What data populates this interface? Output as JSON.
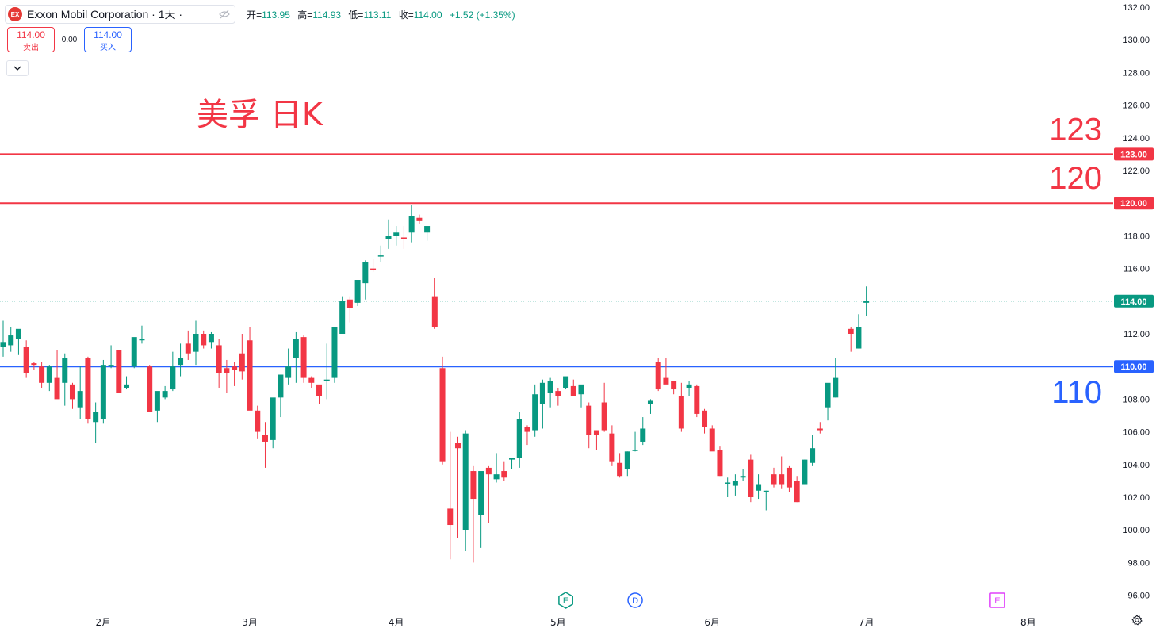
{
  "legend": {
    "symbol_logo": "EX",
    "symbol_name": "Exxon Mobil Corporation · 1天 ·",
    "eye_icon": "eye-off-icon",
    "open_label": "开=",
    "open_value": "113.95",
    "high_label": "高=",
    "high_value": "114.93",
    "low_label": "低=",
    "low_value": "113.11",
    "close_label": "收=",
    "close_value": "114.00",
    "change": "+1.52 (+1.35%)"
  },
  "trade": {
    "sell_price": "114.00",
    "sell_label": "卖出",
    "spread": "0.00",
    "buy_price": "114.00",
    "buy_label": "买入"
  },
  "collapse_icon": "chevron-down-icon",
  "settings_icon": "gear-icon",
  "colors": {
    "up": "#089981",
    "down": "#f23645",
    "red_line": "#f23645",
    "blue_line": "#2962ff"
  },
  "chart_data": {
    "type": "candlestick",
    "annotation": "美孚 日K",
    "y_ticks": [
      "132.00",
      "130.00",
      "128.00",
      "126.00",
      "124.00",
      "122.00",
      "120.00",
      "118.00",
      "116.00",
      "114.00",
      "112.00",
      "110.00",
      "108.00",
      "106.00",
      "104.00",
      "102.00",
      "100.00",
      "98.00",
      "96.00"
    ],
    "ylim": [
      95,
      132.5
    ],
    "x_labels": [
      {
        "label": "2月",
        "index": 13
      },
      {
        "label": "3月",
        "index": 32
      },
      {
        "label": "4月",
        "index": 51
      },
      {
        "label": "5月",
        "index": 72
      },
      {
        "label": "6月",
        "index": 92
      },
      {
        "label": "7月",
        "index": 112
      },
      {
        "label": "8月",
        "index": 133
      }
    ],
    "horizontal_lines": [
      {
        "value": 123.0,
        "label": "123",
        "price_label": "123.00",
        "color": "#f23645"
      },
      {
        "value": 120.0,
        "label": "120",
        "price_label": "120.00",
        "color": "#f23645"
      },
      {
        "value": 110.0,
        "label": "110",
        "price_label": "110.00",
        "color": "#2962ff"
      }
    ],
    "last_price": {
      "value": 114.0,
      "label": "114.00"
    },
    "event_markers": [
      {
        "letter": "E",
        "index": 73,
        "color": "#089981",
        "shape": "hexagon"
      },
      {
        "letter": "D",
        "index": 82,
        "color": "#2962ff",
        "shape": "circle"
      },
      {
        "letter": "E",
        "index": 129,
        "color": "#e040fb",
        "shape": "square"
      }
    ],
    "candles": [
      [
        111.2,
        112.8,
        110.6,
        111.5
      ],
      [
        111.3,
        112.4,
        110.9,
        111.9
      ],
      [
        111.7,
        112.2,
        110.7,
        112.3
      ],
      [
        111.2,
        111.6,
        109.3,
        109.6
      ],
      [
        110.2,
        110.3,
        109.8,
        110.1
      ],
      [
        110.0,
        110.3,
        108.7,
        109.0
      ],
      [
        109.0,
        110.1,
        108.5,
        110.0
      ],
      [
        109.3,
        111.0,
        108.3,
        108.0
      ],
      [
        109.0,
        110.8,
        107.6,
        110.5
      ],
      [
        108.9,
        109.0,
        107.4,
        108.0
      ],
      [
        107.5,
        110.0,
        106.8,
        108.5
      ],
      [
        110.5,
        110.6,
        106.5,
        106.8
      ],
      [
        106.6,
        107.8,
        105.3,
        107.2
      ],
      [
        106.8,
        110.4,
        106.5,
        110.1
      ],
      [
        110.0,
        111.3,
        109.9,
        110.1
      ],
      [
        111.0,
        110.6,
        108.7,
        108.4
      ],
      [
        108.7,
        109.4,
        108.6,
        108.9
      ],
      [
        110.0,
        111.3,
        109.9,
        111.8
      ],
      [
        111.6,
        112.5,
        111.4,
        111.7
      ],
      [
        110.0,
        110.1,
        107.3,
        107.2
      ],
      [
        107.3,
        108.4,
        106.6,
        108.5
      ],
      [
        108.1,
        108.8,
        108.0,
        108.5
      ],
      [
        108.6,
        110.9,
        108.5,
        110.0
      ],
      [
        110.1,
        111.4,
        109.4,
        110.5
      ],
      [
        111.4,
        112.2,
        110.4,
        110.8
      ],
      [
        110.9,
        112.8,
        110.1,
        112.0
      ],
      [
        112.0,
        112.2,
        111.1,
        111.3
      ],
      [
        111.5,
        112.1,
        111.1,
        112.0
      ],
      [
        111.3,
        111.7,
        108.7,
        109.6
      ],
      [
        109.9,
        110.4,
        108.4,
        109.6
      ],
      [
        110.0,
        110.3,
        108.8,
        109.8
      ],
      [
        110.8,
        112.0,
        109.2,
        109.7
      ],
      [
        111.6,
        112.4,
        107.5,
        107.3
      ],
      [
        107.3,
        107.6,
        105.6,
        106.0
      ],
      [
        105.8,
        106.6,
        103.8,
        105.4
      ],
      [
        105.5,
        108.0,
        105.0,
        108.1
      ],
      [
        108.1,
        108.9,
        106.9,
        109.5
      ],
      [
        109.3,
        111.1,
        108.9,
        110.0
      ],
      [
        110.5,
        112.1,
        109.0,
        111.7
      ],
      [
        111.8,
        111.9,
        109.0,
        109.3
      ],
      [
        109.3,
        109.4,
        108.7,
        109.0
      ],
      [
        108.9,
        108.3,
        107.7,
        108.2
      ],
      [
        109.2,
        111.4,
        108.0,
        109.2
      ],
      [
        109.3,
        112.4,
        109.0,
        112.4
      ],
      [
        112.0,
        114.3,
        112.0,
        114.0
      ],
      [
        114.1,
        114.3,
        112.7,
        113.6
      ],
      [
        113.9,
        115.2,
        113.7,
        115.3
      ],
      [
        115.1,
        116.5,
        114.1,
        116.4
      ],
      [
        116.0,
        116.6,
        115.8,
        115.9
      ],
      [
        116.8,
        117.4,
        116.4,
        116.8
      ],
      [
        117.8,
        119.0,
        117.2,
        118.0
      ],
      [
        118.0,
        118.6,
        117.4,
        118.2
      ],
      [
        117.9,
        118.6,
        117.2,
        117.8
      ],
      [
        118.2,
        119.9,
        117.6,
        119.2
      ],
      [
        119.1,
        119.3,
        118.7,
        118.9
      ],
      [
        118.2,
        118.6,
        117.7,
        118.6
      ],
      [
        114.3,
        115.4,
        112.3,
        112.4
      ],
      [
        109.9,
        110.6,
        104.0,
        104.2
      ],
      [
        101.3,
        106.0,
        98.2,
        100.3
      ],
      [
        105.3,
        105.7,
        99.5,
        105.0
      ],
      [
        100.0,
        106.1,
        98.7,
        105.9
      ],
      [
        103.6,
        103.9,
        98.0,
        101.9
      ],
      [
        100.9,
        103.5,
        98.9,
        103.6
      ],
      [
        103.8,
        103.9,
        100.4,
        103.4
      ],
      [
        103.1,
        104.7,
        102.9,
        103.4
      ],
      [
        103.6,
        104.2,
        103.0,
        103.2
      ],
      [
        104.3,
        104.4,
        103.7,
        104.4
      ],
      [
        104.4,
        107.2,
        103.8,
        106.8
      ],
      [
        106.3,
        106.4,
        105.2,
        106.0
      ],
      [
        106.1,
        108.9,
        105.7,
        108.3
      ],
      [
        107.7,
        109.2,
        106.2,
        109.0
      ],
      [
        108.4,
        109.3,
        107.5,
        109.1
      ],
      [
        108.5,
        108.7,
        107.6,
        108.2
      ],
      [
        108.7,
        109.3,
        108.6,
        109.4
      ],
      [
        108.8,
        109.2,
        108.4,
        108.2
      ],
      [
        108.3,
        108.7,
        107.5,
        108.9
      ],
      [
        107.6,
        107.8,
        105.0,
        105.8
      ],
      [
        106.1,
        106.1,
        104.9,
        105.8
      ],
      [
        107.8,
        109.0,
        106.0,
        106.1
      ],
      [
        105.9,
        106.4,
        103.9,
        104.2
      ],
      [
        104.1,
        104.7,
        103.2,
        103.3
      ],
      [
        103.7,
        104.8,
        103.3,
        104.8
      ],
      [
        104.9,
        106.0,
        104.8,
        104.9
      ],
      [
        105.4,
        106.9,
        105.2,
        106.2
      ],
      [
        107.7,
        108.0,
        107.1,
        107.9
      ],
      [
        110.3,
        110.5,
        108.5,
        108.6
      ],
      [
        109.3,
        110.5,
        109.1,
        108.9
      ],
      [
        109.1,
        109.1,
        108.3,
        108.6
      ],
      [
        108.2,
        109.0,
        106.0,
        106.2
      ],
      [
        108.7,
        109.1,
        108.2,
        108.9
      ],
      [
        108.8,
        108.9,
        106.9,
        107.1
      ],
      [
        107.3,
        107.4,
        105.9,
        106.3
      ],
      [
        106.2,
        106.4,
        104.9,
        104.8
      ],
      [
        104.9,
        105.1,
        103.3,
        103.3
      ],
      [
        102.9,
        103.2,
        102.0,
        102.9
      ],
      [
        102.7,
        103.4,
        102.1,
        103.0
      ],
      [
        103.2,
        103.7,
        103.0,
        103.3
      ],
      [
        104.3,
        104.6,
        101.7,
        102.0
      ],
      [
        102.4,
        103.4,
        101.9,
        102.8
      ],
      [
        102.3,
        102.4,
        101.2,
        102.4
      ],
      [
        103.4,
        103.8,
        102.6,
        102.8
      ],
      [
        103.4,
        104.5,
        102.5,
        102.8
      ],
      [
        103.8,
        103.9,
        102.3,
        102.6
      ],
      [
        103.0,
        103.3,
        101.7,
        101.7
      ],
      [
        102.8,
        104.3,
        102.8,
        104.3
      ],
      [
        104.1,
        105.8,
        103.9,
        105.0
      ],
      [
        106.2,
        106.6,
        105.9,
        106.1
      ],
      [
        107.5,
        108.5,
        106.7,
        109.0
      ],
      [
        108.1,
        110.5,
        108.1,
        109.3
      ],
      [
        null,
        null,
        null,
        null
      ],
      [
        112.3,
        112.4,
        110.9,
        112.0
      ],
      [
        111.1,
        113.2,
        111.1,
        112.4
      ],
      [
        113.9,
        114.9,
        113.1,
        114.0
      ]
    ]
  }
}
